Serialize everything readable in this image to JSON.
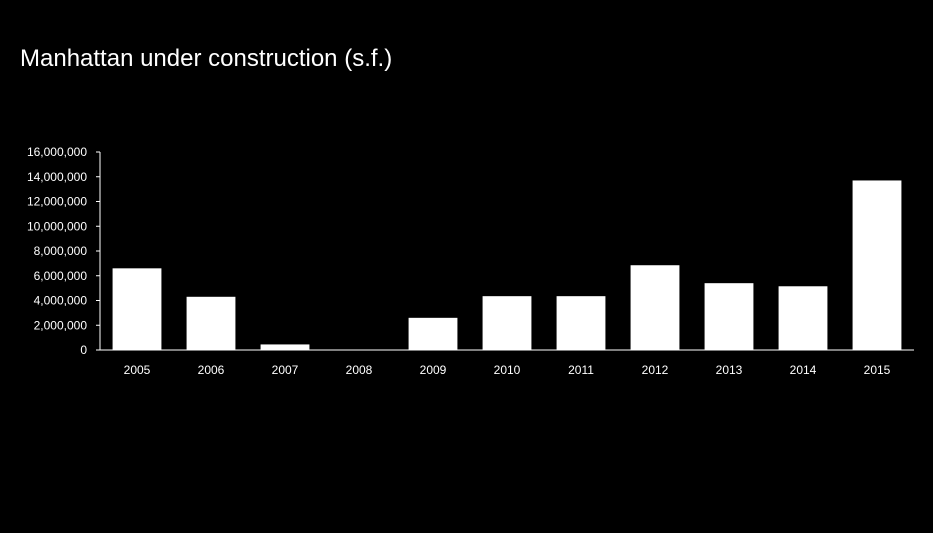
{
  "colors": {
    "background": "#000000",
    "bar": "#ffffff",
    "text": "#ffffff",
    "axis": "#ffffff"
  },
  "chart_data": {
    "type": "bar",
    "title": "Manhattan under construction (s.f.)",
    "xlabel": "",
    "ylabel": "",
    "categories": [
      "2005",
      "2006",
      "2007",
      "2008",
      "2009",
      "2010",
      "2011",
      "2012",
      "2013",
      "2014",
      "2015"
    ],
    "values": [
      6600000,
      4300000,
      450000,
      0,
      2600000,
      4350000,
      4350000,
      6850000,
      5400000,
      5150000,
      13700000
    ],
    "ylim": [
      0,
      16000000
    ],
    "yticks": [
      0,
      2000000,
      4000000,
      6000000,
      8000000,
      10000000,
      12000000,
      14000000,
      16000000
    ],
    "ytick_labels": [
      "0",
      "2,000,000",
      "4,000,000",
      "6,000,000",
      "8,000,000",
      "10,000,000",
      "12,000,000",
      "14,000,000",
      "16,000,000"
    ],
    "grid": false,
    "legend": "none",
    "bar_color": "#ffffff"
  }
}
